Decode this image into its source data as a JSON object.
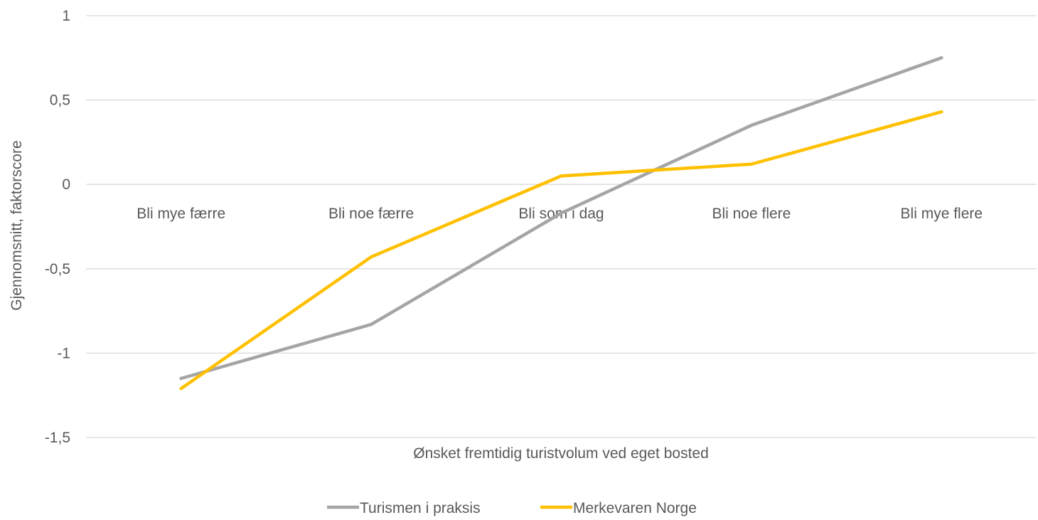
{
  "chart_data": {
    "type": "line",
    "categories": [
      "Bli mye færre",
      "Bli noe færre",
      "Bli som i dag",
      "Bli noe flere",
      "Bli mye flere"
    ],
    "series": [
      {
        "name": "Turismen i praksis",
        "color": "#A5A5A5",
        "values": [
          -1.15,
          -0.83,
          -0.17,
          0.35,
          0.75
        ]
      },
      {
        "name": "Merkevaren Norge",
        "color": "#FFC000",
        "values": [
          -1.21,
          -0.43,
          0.05,
          0.12,
          0.43
        ]
      }
    ],
    "xlabel": "Ønsket fremtidig turistvolum ved eget bosted",
    "ylabel": "Gjennomsnitt, faktorscore",
    "ylim": [
      -1.5,
      1
    ],
    "yticks": [
      1,
      0.5,
      0,
      -0.5,
      -1,
      -1.5
    ],
    "ytick_labels": [
      "1",
      "0,5",
      "0",
      "-0,5",
      "-1",
      "-1,5"
    ],
    "grid": true,
    "legend_position": "bottom"
  }
}
